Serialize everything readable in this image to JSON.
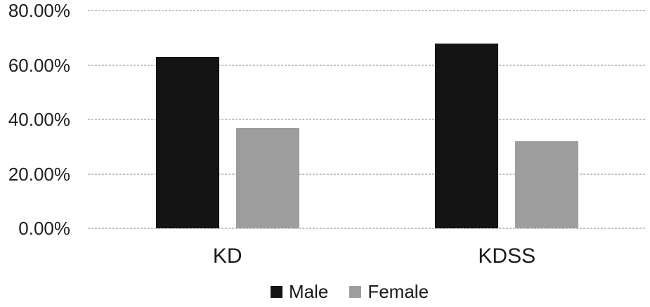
{
  "chart_data": {
    "type": "bar",
    "title": "",
    "xlabel": "",
    "ylabel": "",
    "categories": [
      "KD",
      "KDSS"
    ],
    "series": [
      {
        "name": "Male",
        "color": "#141414",
        "values": [
          63,
          68
        ]
      },
      {
        "name": "Female",
        "color": "#9d9d9d",
        "values": [
          37,
          32
        ]
      }
    ],
    "value_unit": "%",
    "ylim": [
      0,
      80
    ],
    "yticks": [
      {
        "label": "80.00%",
        "value": 80
      },
      {
        "label": "60.00%",
        "value": 60
      },
      {
        "label": "40.00%",
        "value": 40
      },
      {
        "label": "20.00%",
        "value": 20
      },
      {
        "label": "0.00%",
        "value": 0
      }
    ],
    "grid": true,
    "gridline_color": "#c3c3c3",
    "legend_position": "bottom"
  }
}
